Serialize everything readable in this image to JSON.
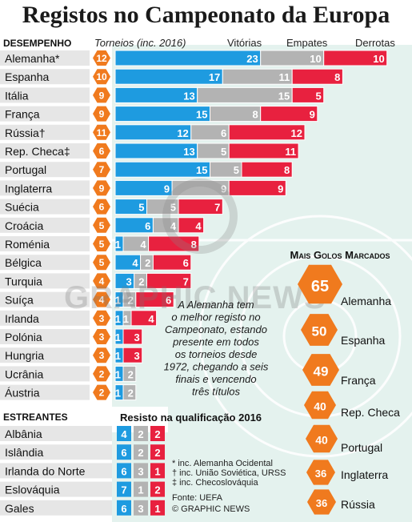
{
  "title": "Registos no Campeonato da Europa",
  "colors": {
    "wins": "#1e9be0",
    "draws": "#b3b3b3",
    "losses": "#e8213f",
    "badge": "#f07a1e",
    "label_band": "#e6e6e6",
    "field": "#e4f2ee",
    "grass_line": "#ffffff"
  },
  "headers": {
    "section": "DESEMPENHO",
    "tournaments": "Torneios (inc. 2016)",
    "wins": "Vitórias",
    "draws": "Empates",
    "losses": "Derrotas"
  },
  "chart_data": {
    "type": "bar",
    "categories": [
      "Alemanha*",
      "Espanha",
      "Itália",
      "França",
      "Rússia†",
      "Rep. Checa‡",
      "Portugal",
      "Inglaterra",
      "Suécia",
      "Croácia",
      "Roménia",
      "Bélgica",
      "Turquia",
      "Suíça",
      "Irlanda",
      "Polónia",
      "Hungria",
      "Ucrânia",
      "Áustria"
    ],
    "tournaments": [
      12,
      10,
      9,
      9,
      11,
      6,
      7,
      9,
      6,
      5,
      5,
      5,
      4,
      4,
      3,
      3,
      3,
      2,
      2
    ],
    "series": [
      {
        "name": "Vitórias",
        "values": [
          23,
          17,
          13,
          15,
          12,
          13,
          15,
          9,
          5,
          6,
          1,
          4,
          3,
          1,
          1,
          1,
          1,
          1,
          1
        ]
      },
      {
        "name": "Empates",
        "values": [
          10,
          11,
          15,
          8,
          6,
          5,
          5,
          9,
          5,
          4,
          4,
          2,
          2,
          2,
          1,
          0,
          0,
          2,
          2
        ]
      },
      {
        "name": "Derrotas",
        "values": [
          10,
          8,
          5,
          9,
          12,
          11,
          8,
          9,
          7,
          4,
          8,
          6,
          7,
          6,
          4,
          3,
          3,
          0,
          0
        ]
      }
    ]
  },
  "debut": {
    "section": "ESTREANTES",
    "subtitle": "Resisto na qualificação 2016",
    "teams": [
      "Albânia",
      "Islândia",
      "Irlanda do Norte",
      "Eslováquia",
      "Gales"
    ],
    "wins": [
      4,
      6,
      6,
      7,
      6
    ],
    "draws": [
      2,
      2,
      3,
      1,
      3
    ],
    "losses": [
      2,
      2,
      1,
      2,
      1
    ]
  },
  "top_scorers": {
    "title": "Mais Golos Marcados",
    "teams": [
      "Alemanha",
      "Espanha",
      "França",
      "Rep. Checa",
      "Portugal",
      "Inglaterra",
      "Rússia"
    ],
    "goals": [
      65,
      50,
      49,
      40,
      40,
      36,
      36
    ]
  },
  "annotation": [
    "A Alemanha tem",
    "o melhor registo no",
    "Campeonato, estando",
    "presente em todos",
    "os torneios desde",
    "1972, chegando a seis",
    "finais e vencendo",
    "três títulos"
  ],
  "footnotes": [
    "* inc. Alemanha Ocidental",
    "† inc. União Soviética, URSS",
    "‡ inc. Checoslováquia"
  ],
  "source": "Fonte: UEFA",
  "credit": "© GRAPHIC NEWS",
  "watermark": "GRAPHIC NEWS"
}
